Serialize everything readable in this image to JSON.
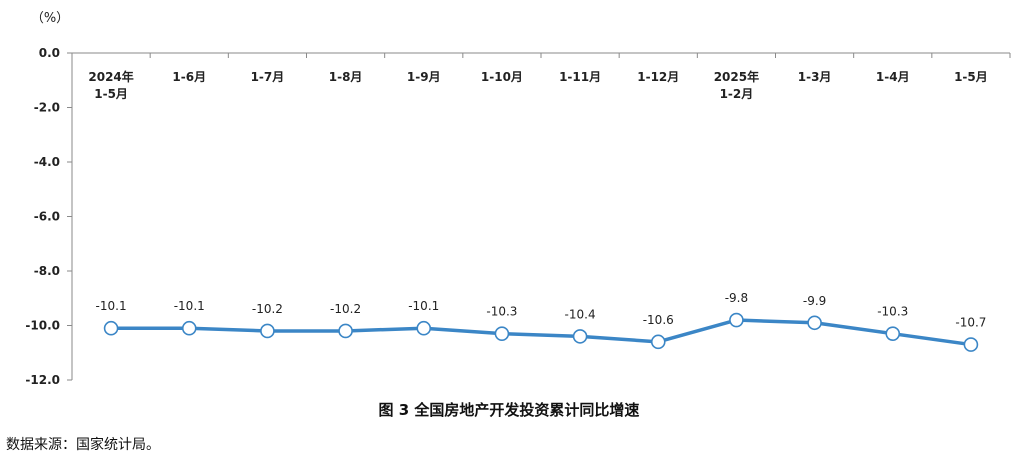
{
  "chart_data": {
    "type": "line",
    "unit_label": "（%）",
    "categories": [
      [
        "2024年",
        "1-5月"
      ],
      [
        "1-6月"
      ],
      [
        "1-7月"
      ],
      [
        "1-8月"
      ],
      [
        "1-9月"
      ],
      [
        "1-10月"
      ],
      [
        "1-11月"
      ],
      [
        "1-12月"
      ],
      [
        "2025年",
        "1-2月"
      ],
      [
        "1-3月"
      ],
      [
        "1-4月"
      ],
      [
        "1-5月"
      ]
    ],
    "values": [
      -10.1,
      -10.1,
      -10.2,
      -10.2,
      -10.1,
      -10.3,
      -10.4,
      -10.6,
      -9.8,
      -9.9,
      -10.3,
      -10.7
    ],
    "ylim": [
      -12.0,
      0.0
    ],
    "yticks": [
      0.0,
      -2.0,
      -4.0,
      -6.0,
      -8.0,
      -10.0,
      -12.0
    ],
    "ytick_labels": [
      "0.0",
      "-2.0",
      "-4.0",
      "-6.0",
      "-8.0",
      "-10.0",
      "-12.0"
    ],
    "line_color": "#3b86c6",
    "marker_fill": "#ffffff",
    "grid": false,
    "legend": "none"
  },
  "caption": "图 3  全国房地产开发投资累计同比增速",
  "source": "数据来源：国家统计局。"
}
